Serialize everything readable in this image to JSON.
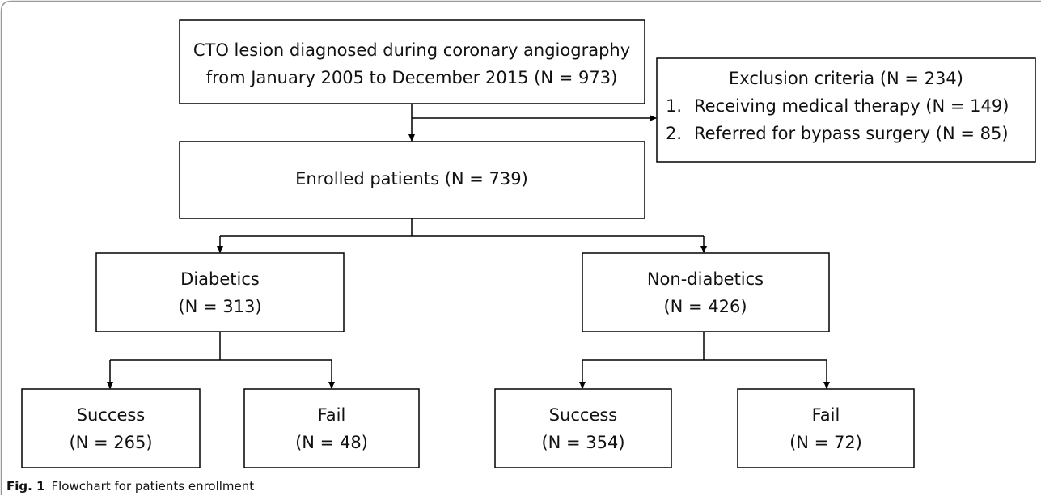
{
  "nodes": [
    {
      "lines": [
        "CTO lesion diagnosed during coronary angiography",
        "from January 2005 to December 2015 (N = 973)"
      ]
    },
    {
      "title": "Exclusion criteria (N = 234)",
      "items": [
        {
          "number": "1.",
          "text": "Receiving medical therapy (N = 149)"
        },
        {
          "number": "2.",
          "text": "Referred for bypass surgery (N = 85)"
        }
      ]
    },
    {
      "lines": [
        "Enrolled patients (N = 739)"
      ]
    },
    {
      "lines": [
        "Diabetics",
        "(N = 313)"
      ]
    },
    {
      "lines": [
        "Non-diabetics",
        "(N = 426)"
      ]
    },
    {
      "lines": [
        "Success",
        "(N = 265)"
      ]
    },
    {
      "lines": [
        "Fail",
        "(N = 48)"
      ]
    },
    {
      "lines": [
        "Success",
        "(N = 354)"
      ]
    },
    {
      "lines": [
        "Fail",
        "(N = 72)"
      ]
    }
  ],
  "caption": {
    "label": "Fig. 1",
    "text": "Flowchart for patients enrollment"
  }
}
